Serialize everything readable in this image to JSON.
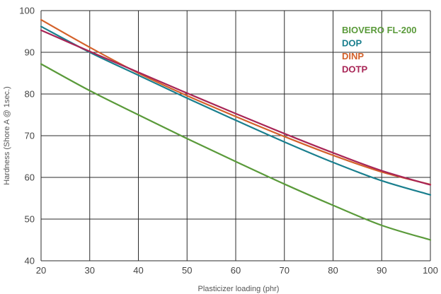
{
  "chart_data": {
    "type": "line",
    "title": "",
    "xlabel": "Plasticizer loading (phr)",
    "ylabel": "Hardness (Shore A @ 1sec.)",
    "xlim": [
      20,
      100
    ],
    "ylim": [
      40,
      100
    ],
    "x_ticks": [
      20,
      30,
      40,
      50,
      60,
      70,
      80,
      90,
      100
    ],
    "y_ticks": [
      40,
      50,
      60,
      70,
      80,
      90,
      100
    ],
    "grid": true,
    "legend_position": "top-right",
    "x": [
      20,
      30,
      40,
      50,
      60,
      70,
      80,
      90,
      100
    ],
    "series": [
      {
        "name": "BIOVERO FL-200",
        "color": "#5a9a3a",
        "values": [
          87.2,
          80.8,
          75.0,
          69.3,
          63.8,
          58.4,
          53.3,
          48.5,
          45.0
        ]
      },
      {
        "name": "DOP",
        "color": "#1a7f8e",
        "values": [
          96.2,
          90.0,
          84.5,
          79.0,
          73.7,
          68.5,
          63.6,
          59.2,
          55.8
        ]
      },
      {
        "name": "DINP",
        "color": "#d4612a",
        "values": [
          97.8,
          91.2,
          85.0,
          79.6,
          74.6,
          69.8,
          65.3,
          61.3,
          58.3
        ]
      },
      {
        "name": "DOTP",
        "color": "#a82556",
        "values": [
          95.3,
          90.2,
          85.2,
          80.2,
          75.3,
          70.5,
          65.9,
          61.6,
          58.2
        ]
      }
    ]
  }
}
